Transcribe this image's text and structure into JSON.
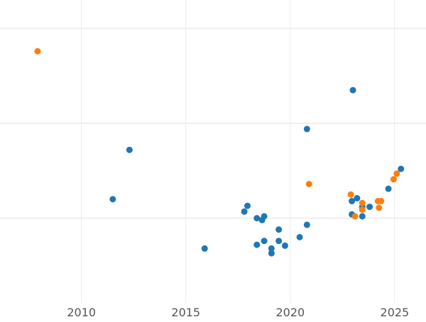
{
  "chart_data": {
    "type": "scatter",
    "title": "",
    "xlabel": "",
    "ylabel": "",
    "xlim": [
      2006.1,
      2026.5
    ],
    "ylim": [
      0,
      3.2
    ],
    "x_ticks": [
      2010,
      2015,
      2020,
      2025
    ],
    "x_tick_labels": [
      "2010",
      "2015",
      "2020",
      "2025"
    ],
    "y_gridlines": [
      0.9,
      1.9,
      2.9
    ],
    "y_tick_labels_visible": false,
    "grid": true,
    "legend": "none",
    "series": [
      {
        "color": "#1f77b4",
        "points": [
          {
            "x": 2011.5,
            "y": 1.1
          },
          {
            "x": 2012.3,
            "y": 1.62
          },
          {
            "x": 2015.9,
            "y": 0.58
          },
          {
            "x": 2017.8,
            "y": 0.97
          },
          {
            "x": 2017.95,
            "y": 1.03
          },
          {
            "x": 2018.4,
            "y": 0.9
          },
          {
            "x": 2018.4,
            "y": 0.62
          },
          {
            "x": 2018.65,
            "y": 0.88
          },
          {
            "x": 2018.75,
            "y": 0.92
          },
          {
            "x": 2018.75,
            "y": 0.66
          },
          {
            "x": 2019.1,
            "y": 0.58
          },
          {
            "x": 2019.1,
            "y": 0.53
          },
          {
            "x": 2019.45,
            "y": 0.78
          },
          {
            "x": 2019.45,
            "y": 0.66
          },
          {
            "x": 2019.75,
            "y": 0.61
          },
          {
            "x": 2020.45,
            "y": 0.7
          },
          {
            "x": 2020.8,
            "y": 0.83
          },
          {
            "x": 2020.8,
            "y": 1.84
          },
          {
            "x": 2022.95,
            "y": 1.08
          },
          {
            "x": 2022.95,
            "y": 0.94
          },
          {
            "x": 2023.0,
            "y": 2.25
          },
          {
            "x": 2023.2,
            "y": 1.11
          },
          {
            "x": 2023.45,
            "y": 0.92
          },
          {
            "x": 2023.45,
            "y": 1.02
          },
          {
            "x": 2023.8,
            "y": 1.02
          },
          {
            "x": 2024.7,
            "y": 1.21
          },
          {
            "x": 2025.3,
            "y": 1.42
          }
        ]
      },
      {
        "color": "#ff7f0e",
        "points": [
          {
            "x": 2007.9,
            "y": 2.66
          },
          {
            "x": 2020.9,
            "y": 1.26
          },
          {
            "x": 2022.9,
            "y": 1.15
          },
          {
            "x": 2023.1,
            "y": 0.92
          },
          {
            "x": 2023.45,
            "y": 1.06
          },
          {
            "x": 2023.45,
            "y": 0.99
          },
          {
            "x": 2024.2,
            "y": 1.08
          },
          {
            "x": 2024.25,
            "y": 1.01
          },
          {
            "x": 2024.35,
            "y": 1.08
          },
          {
            "x": 2024.95,
            "y": 1.31
          },
          {
            "x": 2025.1,
            "y": 1.37
          }
        ]
      }
    ]
  }
}
